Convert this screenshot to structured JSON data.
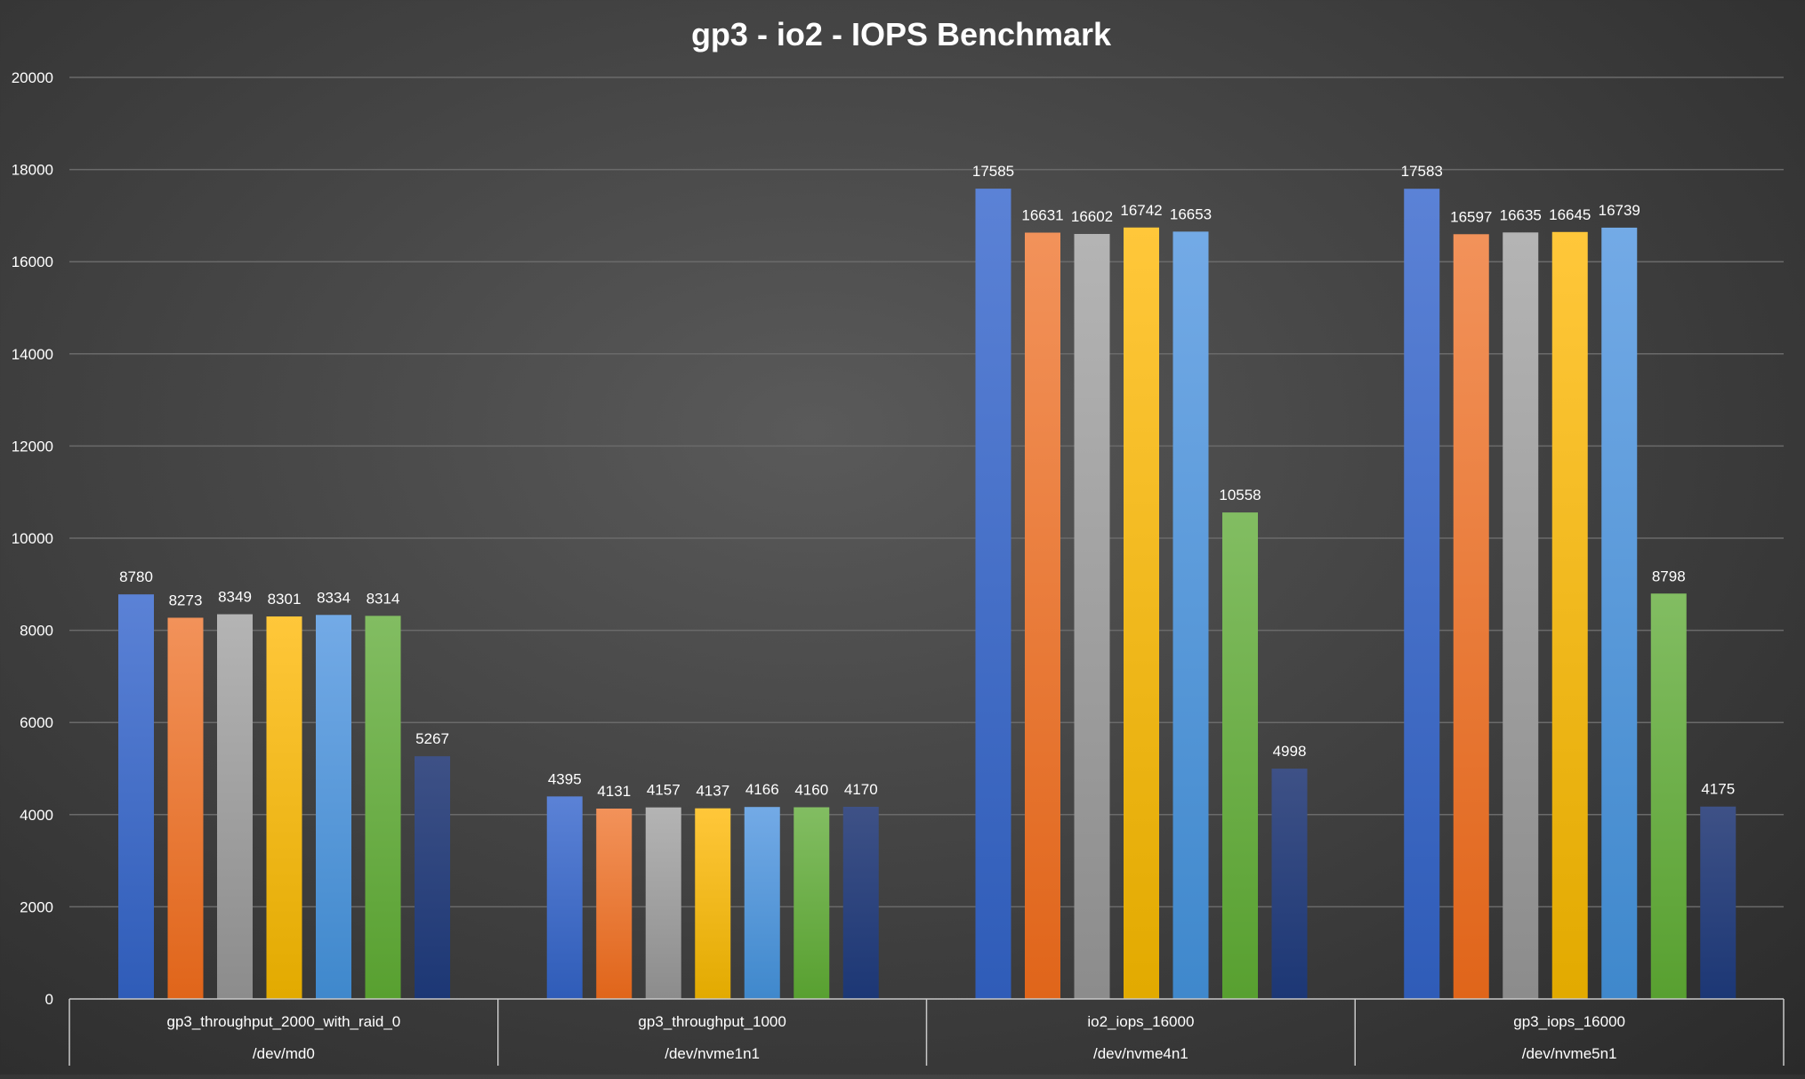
{
  "chart_data": {
    "type": "bar",
    "title": "gp3 - io2 - IOPS Benchmark",
    "xlabel": "",
    "ylabel": "",
    "ylim": [
      0,
      20000
    ],
    "y_ticks": [
      0,
      2000,
      4000,
      6000,
      8000,
      10000,
      12000,
      14000,
      16000,
      18000,
      20000
    ],
    "grid": true,
    "legend": "none",
    "groups": [
      {
        "label": "gp3_throughput_2000_with_raid_0",
        "sublabel": "/dev/md0",
        "values": [
          8780,
          8273,
          8349,
          8301,
          8334,
          8314,
          5267
        ]
      },
      {
        "label": "gp3_throughput_1000",
        "sublabel": "/dev/nvme1n1",
        "values": [
          4395,
          4131,
          4157,
          4137,
          4166,
          4160,
          4170
        ]
      },
      {
        "label": "io2_iops_16000",
        "sublabel": "/dev/nvme4n1",
        "values": [
          17585,
          16631,
          16602,
          16742,
          16653,
          10558,
          4998
        ]
      },
      {
        "label": "gp3_iops_16000",
        "sublabel": "/dev/nvme5n1",
        "values": [
          17583,
          16597,
          16635,
          16645,
          16739,
          8798,
          4175
        ]
      }
    ],
    "series_colors": [
      {
        "light": "#5b82d6",
        "dark": "#2f5cb8"
      },
      {
        "light": "#f2925a",
        "dark": "#e0651a"
      },
      {
        "light": "#b4b4b4",
        "dark": "#8c8c8c"
      },
      {
        "light": "#ffc73a",
        "dark": "#e2aa00"
      },
      {
        "light": "#73aae6",
        "dark": "#3f88cc"
      },
      {
        "light": "#82bd62",
        "dark": "#58a030"
      },
      {
        "light": "#3e5186",
        "dark": "#1c3775"
      }
    ],
    "colors": {
      "grid": "#6a6a6a",
      "axis": "#c8c8c8",
      "text": "#ffffff"
    }
  }
}
